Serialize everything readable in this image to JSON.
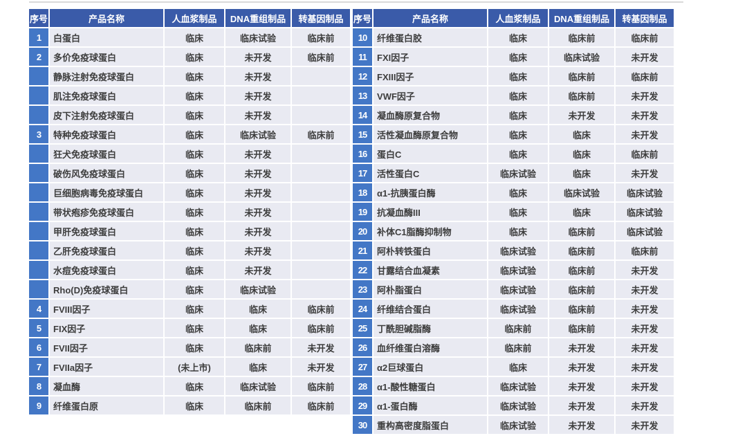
{
  "colors": {
    "header_bg": "#3a5ba9",
    "index_bg": "#4377c6",
    "row_bg": "#e9eaf2",
    "header_text": "#ffffff",
    "body_text": "#3d3d3d",
    "top_rule": "#d9d9d9",
    "page_bg": "#ffffff"
  },
  "columns": [
    "序号",
    "产品名称",
    "人血浆制品",
    "DNA重组制品",
    "转基因制品"
  ],
  "left_table": {
    "rows": [
      {
        "no": "1",
        "name": "白蛋白",
        "plasma": "临床",
        "dna": "临床试验",
        "transgenic": "临床前"
      },
      {
        "no": "2",
        "name": "多价免疫球蛋白",
        "plasma": "临床",
        "dna": "未开发",
        "transgenic": "临床前"
      },
      {
        "no": "",
        "name": "静脉注射免疫球蛋白",
        "plasma": "临床",
        "dna": "未开发",
        "transgenic": ""
      },
      {
        "no": "",
        "name": "肌注免疫球蛋白",
        "plasma": "临床",
        "dna": "未开发",
        "transgenic": ""
      },
      {
        "no": "",
        "name": "皮下注射免疫球蛋白",
        "plasma": "临床",
        "dna": "未开发",
        "transgenic": ""
      },
      {
        "no": "3",
        "name": "特种免疫球蛋白",
        "plasma": "临床",
        "dna": "临床试验",
        "transgenic": "临床前"
      },
      {
        "no": "",
        "name": "狂犬免疫球蛋白",
        "plasma": "临床",
        "dna": "未开发",
        "transgenic": ""
      },
      {
        "no": "",
        "name": "破伤风免疫球蛋白",
        "plasma": "临床",
        "dna": "未开发",
        "transgenic": ""
      },
      {
        "no": "",
        "name": "巨细胞病毒免疫球蛋白",
        "plasma": "临床",
        "dna": "未开发",
        "transgenic": ""
      },
      {
        "no": "",
        "name": "带状疱疹免疫球蛋白",
        "plasma": "临床",
        "dna": "未开发",
        "transgenic": ""
      },
      {
        "no": "",
        "name": "甲肝免疫球蛋白",
        "plasma": "临床",
        "dna": "未开发",
        "transgenic": ""
      },
      {
        "no": "",
        "name": "乙肝免疫球蛋白",
        "plasma": "临床",
        "dna": "未开发",
        "transgenic": ""
      },
      {
        "no": "",
        "name": "水痘免疫球蛋白",
        "plasma": "临床",
        "dna": "未开发",
        "transgenic": ""
      },
      {
        "no": "",
        "name": "Rho(D)免疫球蛋白",
        "plasma": "临床",
        "dna": "临床试验",
        "transgenic": ""
      },
      {
        "no": "4",
        "name": "FVIII因子",
        "plasma": "临床",
        "dna": "临床",
        "transgenic": "临床前"
      },
      {
        "no": "5",
        "name": "FIX因子",
        "plasma": "临床",
        "dna": "临床",
        "transgenic": "临床前"
      },
      {
        "no": "6",
        "name": "FVII因子",
        "plasma": "临床",
        "dna": "临床前",
        "transgenic": "未开发"
      },
      {
        "no": "7",
        "name": "FVIIa因子",
        "plasma": "(未上市)",
        "dna": "临床",
        "transgenic": "未开发"
      },
      {
        "no": "8",
        "name": "凝血酶",
        "plasma": "临床",
        "dna": "临床试验",
        "transgenic": "临床前"
      },
      {
        "no": "9",
        "name": "纤维蛋白原",
        "plasma": "临床",
        "dna": "临床前",
        "transgenic": "临床前"
      }
    ]
  },
  "right_table": {
    "rows": [
      {
        "no": "10",
        "name": "纤维蛋白胶",
        "plasma": "临床",
        "dna": "临床前",
        "transgenic": "临床前"
      },
      {
        "no": "11",
        "name": "FXI因子",
        "plasma": "临床",
        "dna": "临床试验",
        "transgenic": "未开发"
      },
      {
        "no": "12",
        "name": "FXIII因子",
        "plasma": "临床",
        "dna": "临床前",
        "transgenic": "临床前"
      },
      {
        "no": "13",
        "name": "VWF因子",
        "plasma": "临床",
        "dna": "临床前",
        "transgenic": "未开发"
      },
      {
        "no": "14",
        "name": "凝血酶原复合物",
        "plasma": "临床",
        "dna": "未开发",
        "transgenic": "未开发"
      },
      {
        "no": "15",
        "name": "活性凝血酶原复合物",
        "plasma": "临床",
        "dna": "临床",
        "transgenic": "未开发"
      },
      {
        "no": "16",
        "name": "蛋白C",
        "plasma": "临床",
        "dna": "临床",
        "transgenic": "临床前"
      },
      {
        "no": "17",
        "name": "活性蛋白C",
        "plasma": "临床试验",
        "dna": "临床",
        "transgenic": "未开发"
      },
      {
        "no": "18",
        "name": "α1-抗胰蛋白酶",
        "plasma": "临床",
        "dna": "临床试验",
        "transgenic": "临床试验"
      },
      {
        "no": "19",
        "name": "抗凝血酶III",
        "plasma": "临床",
        "dna": "临床",
        "transgenic": "临床试验"
      },
      {
        "no": "20",
        "name": "补体C1脂酶抑制物",
        "plasma": "临床",
        "dna": "临床前",
        "transgenic": "临床试验"
      },
      {
        "no": "21",
        "name": "阿朴转铁蛋白",
        "plasma": "临床试验",
        "dna": "临床前",
        "transgenic": "临床前"
      },
      {
        "no": "22",
        "name": "甘露结合血凝素",
        "plasma": "临床试验",
        "dna": "临床前",
        "transgenic": "未开发"
      },
      {
        "no": "23",
        "name": "阿朴脂蛋白",
        "plasma": "临床试验",
        "dna": "临床前",
        "transgenic": "未开发"
      },
      {
        "no": "24",
        "name": "纤维结合蛋白",
        "plasma": "临床试验",
        "dna": "临床前",
        "transgenic": "未开发"
      },
      {
        "no": "25",
        "name": "丁酰胆碱脂酶",
        "plasma": "临床前",
        "dna": "临床前",
        "transgenic": "未开发"
      },
      {
        "no": "26",
        "name": "血纤维蛋白溶酶",
        "plasma": "临床前",
        "dna": "未开发",
        "transgenic": "未开发"
      },
      {
        "no": "27",
        "name": "α2巨球蛋白",
        "plasma": "临床",
        "dna": "未开发",
        "transgenic": "未开发"
      },
      {
        "no": "28",
        "name": "α1-酸性糖蛋白",
        "plasma": "临床试验",
        "dna": "未开发",
        "transgenic": "未开发"
      },
      {
        "no": "29",
        "name": "α1-蛋白酶",
        "plasma": "临床试验",
        "dna": "未开发",
        "transgenic": "未开发"
      },
      {
        "no": "30",
        "name": "重构高密度脂蛋白",
        "plasma": "临床试验",
        "dna": "未开发",
        "transgenic": "未开发"
      }
    ]
  }
}
